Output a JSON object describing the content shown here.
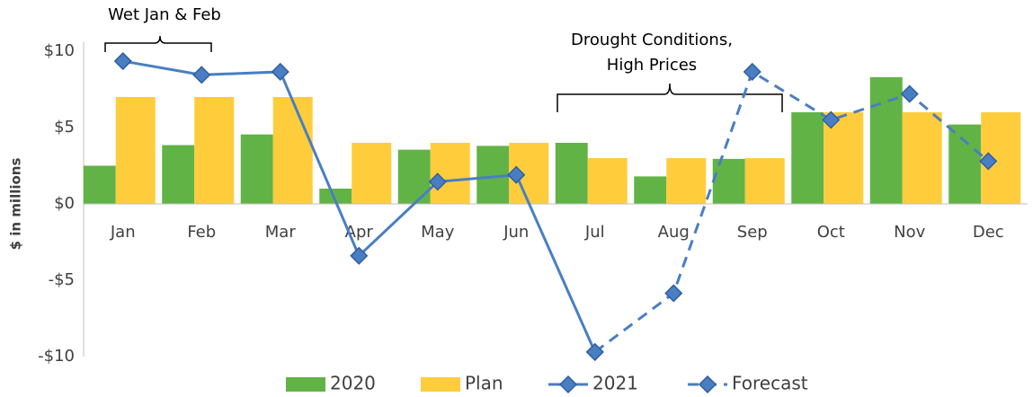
{
  "chart_data": {
    "type": "bar",
    "y_label": "$ in millions",
    "annotations": [
      {
        "text": [
          "Wet Jan & Feb"
        ]
      },
      {
        "text": [
          "Drought Conditions,",
          "High Prices"
        ]
      }
    ],
    "categories": [
      "Jan",
      "Feb",
      "Mar",
      "Apr",
      "May",
      "Jun",
      "Jul",
      "Aug",
      "Sep",
      "Oct",
      "Nov",
      "Dec"
    ],
    "series": [
      {
        "name": "2020",
        "type": "bar",
        "color": "#62b346",
        "values": [
          2.5,
          3.85,
          4.55,
          1.0,
          3.55,
          3.8,
          4.0,
          1.8,
          2.95,
          6.0,
          8.3,
          5.2
        ]
      },
      {
        "name": "Plan",
        "type": "bar",
        "color": "#ffcd3c",
        "values": [
          7,
          7,
          7,
          4,
          4,
          4,
          3,
          3,
          3,
          6,
          6,
          6
        ]
      },
      {
        "name": "2021",
        "type": "line",
        "color": "#4a7ec2",
        "dashed": false,
        "values": [
          9.35,
          8.45,
          8.65,
          -3.4,
          1.45,
          1.9,
          -9.7,
          null,
          null,
          null,
          null,
          null
        ]
      },
      {
        "name": "Forecast",
        "type": "line",
        "color": "#4a7ec2",
        "dashed": true,
        "values": [
          null,
          null,
          null,
          null,
          null,
          null,
          -9.7,
          -5.85,
          8.65,
          5.5,
          7.2,
          2.8
        ]
      }
    ],
    "ylim": [
      -10,
      10
    ],
    "yticks": [
      {
        "value": 10,
        "label": "$10"
      },
      {
        "value": 5,
        "label": "$5"
      },
      {
        "value": 0,
        "label": "$0"
      },
      {
        "value": -5,
        "label": "-$5"
      },
      {
        "value": -10,
        "label": "-$10"
      }
    ],
    "grid": false,
    "legend": "bottom"
  }
}
